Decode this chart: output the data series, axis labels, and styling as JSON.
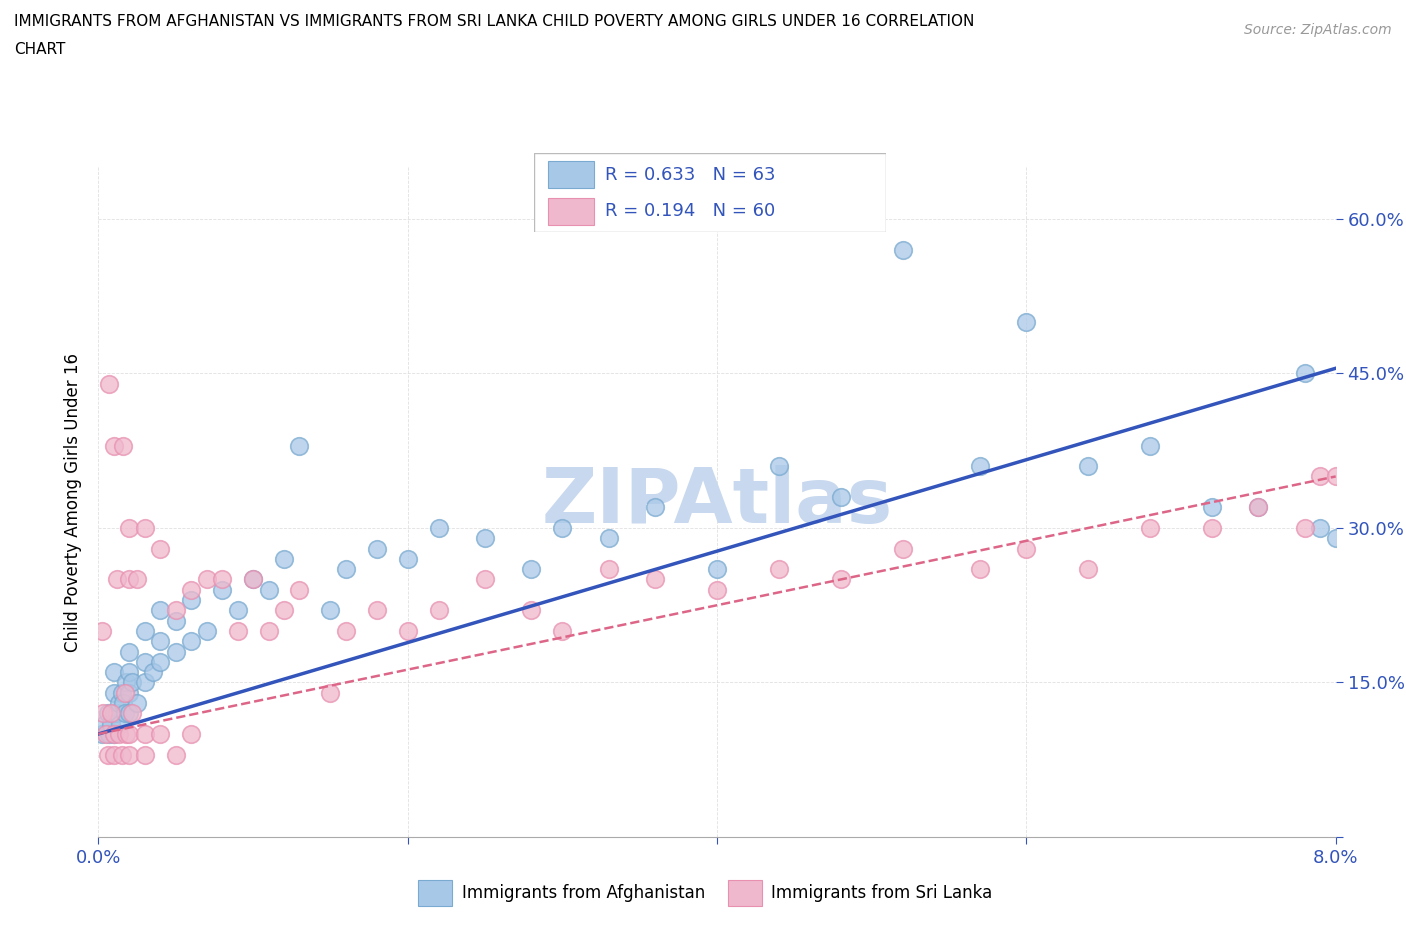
{
  "title_line1": "IMMIGRANTS FROM AFGHANISTAN VS IMMIGRANTS FROM SRI LANKA CHILD POVERTY AMONG GIRLS UNDER 16 CORRELATION",
  "title_line2": "CHART",
  "source": "Source: ZipAtlas.com",
  "ylabel": "Child Poverty Among Girls Under 16",
  "xlim": [
    0.0,
    0.08
  ],
  "ylim": [
    0.0,
    0.65
  ],
  "xticks": [
    0.0,
    0.02,
    0.04,
    0.06,
    0.08
  ],
  "xticklabels": [
    "0.0%",
    "",
    "",
    "",
    "8.0%"
  ],
  "yticks": [
    0.0,
    0.15,
    0.3,
    0.45,
    0.6
  ],
  "yticklabels_right": [
    "",
    "15.0%",
    "30.0%",
    "45.0%",
    "60.0%"
  ],
  "afghanistan_color": "#a8c8e8",
  "srilanka_color": "#f0b8cc",
  "afghanistan_edge_color": "#7aaad0",
  "srilanka_edge_color": "#e890b0",
  "afghanistan_line_color": "#3355bb",
  "srilanka_line_color": "#dd6688",
  "R_afghanistan": 0.633,
  "N_afghanistan": 63,
  "R_srilanka": 0.194,
  "N_srilanka": 60,
  "watermark": "ZIPAtlas",
  "watermark_color": "#c8d8ee",
  "afghanistan_x": [
    0.0002,
    0.0004,
    0.0006,
    0.0007,
    0.0008,
    0.001,
    0.001,
    0.001,
    0.001,
    0.0012,
    0.0013,
    0.0014,
    0.0015,
    0.0016,
    0.0017,
    0.0018,
    0.002,
    0.002,
    0.002,
    0.002,
    0.0022,
    0.0025,
    0.003,
    0.003,
    0.003,
    0.0035,
    0.004,
    0.004,
    0.004,
    0.005,
    0.005,
    0.006,
    0.006,
    0.007,
    0.008,
    0.009,
    0.01,
    0.011,
    0.012,
    0.013,
    0.015,
    0.016,
    0.018,
    0.02,
    0.022,
    0.025,
    0.028,
    0.03,
    0.033,
    0.036,
    0.04,
    0.044,
    0.048,
    0.052,
    0.057,
    0.06,
    0.064,
    0.068,
    0.072,
    0.075,
    0.078,
    0.079,
    0.08
  ],
  "afghanistan_y": [
    0.1,
    0.11,
    0.12,
    0.1,
    0.11,
    0.1,
    0.12,
    0.14,
    0.16,
    0.12,
    0.13,
    0.11,
    0.14,
    0.13,
    0.12,
    0.15,
    0.12,
    0.14,
    0.16,
    0.18,
    0.15,
    0.13,
    0.15,
    0.17,
    0.2,
    0.16,
    0.17,
    0.19,
    0.22,
    0.18,
    0.21,
    0.19,
    0.23,
    0.2,
    0.24,
    0.22,
    0.25,
    0.24,
    0.27,
    0.38,
    0.22,
    0.26,
    0.28,
    0.27,
    0.3,
    0.29,
    0.26,
    0.3,
    0.29,
    0.32,
    0.26,
    0.36,
    0.33,
    0.57,
    0.36,
    0.5,
    0.36,
    0.38,
    0.32,
    0.32,
    0.45,
    0.3,
    0.29
  ],
  "srilanka_x": [
    0.0002,
    0.0003,
    0.0005,
    0.0006,
    0.0007,
    0.0008,
    0.001,
    0.001,
    0.001,
    0.0012,
    0.0013,
    0.0015,
    0.0016,
    0.0017,
    0.0018,
    0.002,
    0.002,
    0.002,
    0.002,
    0.0022,
    0.0025,
    0.003,
    0.003,
    0.003,
    0.004,
    0.004,
    0.005,
    0.005,
    0.006,
    0.006,
    0.007,
    0.008,
    0.009,
    0.01,
    0.011,
    0.012,
    0.013,
    0.015,
    0.016,
    0.018,
    0.02,
    0.022,
    0.025,
    0.028,
    0.03,
    0.033,
    0.036,
    0.04,
    0.044,
    0.048,
    0.052,
    0.057,
    0.06,
    0.064,
    0.068,
    0.072,
    0.075,
    0.078,
    0.079,
    0.08
  ],
  "srilanka_y": [
    0.2,
    0.12,
    0.1,
    0.08,
    0.44,
    0.12,
    0.1,
    0.38,
    0.08,
    0.25,
    0.1,
    0.08,
    0.38,
    0.14,
    0.1,
    0.25,
    0.3,
    0.1,
    0.08,
    0.12,
    0.25,
    0.08,
    0.3,
    0.1,
    0.28,
    0.1,
    0.22,
    0.08,
    0.1,
    0.24,
    0.25,
    0.25,
    0.2,
    0.25,
    0.2,
    0.22,
    0.24,
    0.14,
    0.2,
    0.22,
    0.2,
    0.22,
    0.25,
    0.22,
    0.2,
    0.26,
    0.25,
    0.24,
    0.26,
    0.25,
    0.28,
    0.26,
    0.28,
    0.26,
    0.3,
    0.3,
    0.32,
    0.3,
    0.35,
    0.35
  ],
  "legend_box_color": "#ffffff",
  "legend_text_color": "#3355bb",
  "grid_color": "#dddddd",
  "bottom_legend_labels": [
    "Immigrants from Afghanistan",
    "Immigrants from Sri Lanka"
  ]
}
